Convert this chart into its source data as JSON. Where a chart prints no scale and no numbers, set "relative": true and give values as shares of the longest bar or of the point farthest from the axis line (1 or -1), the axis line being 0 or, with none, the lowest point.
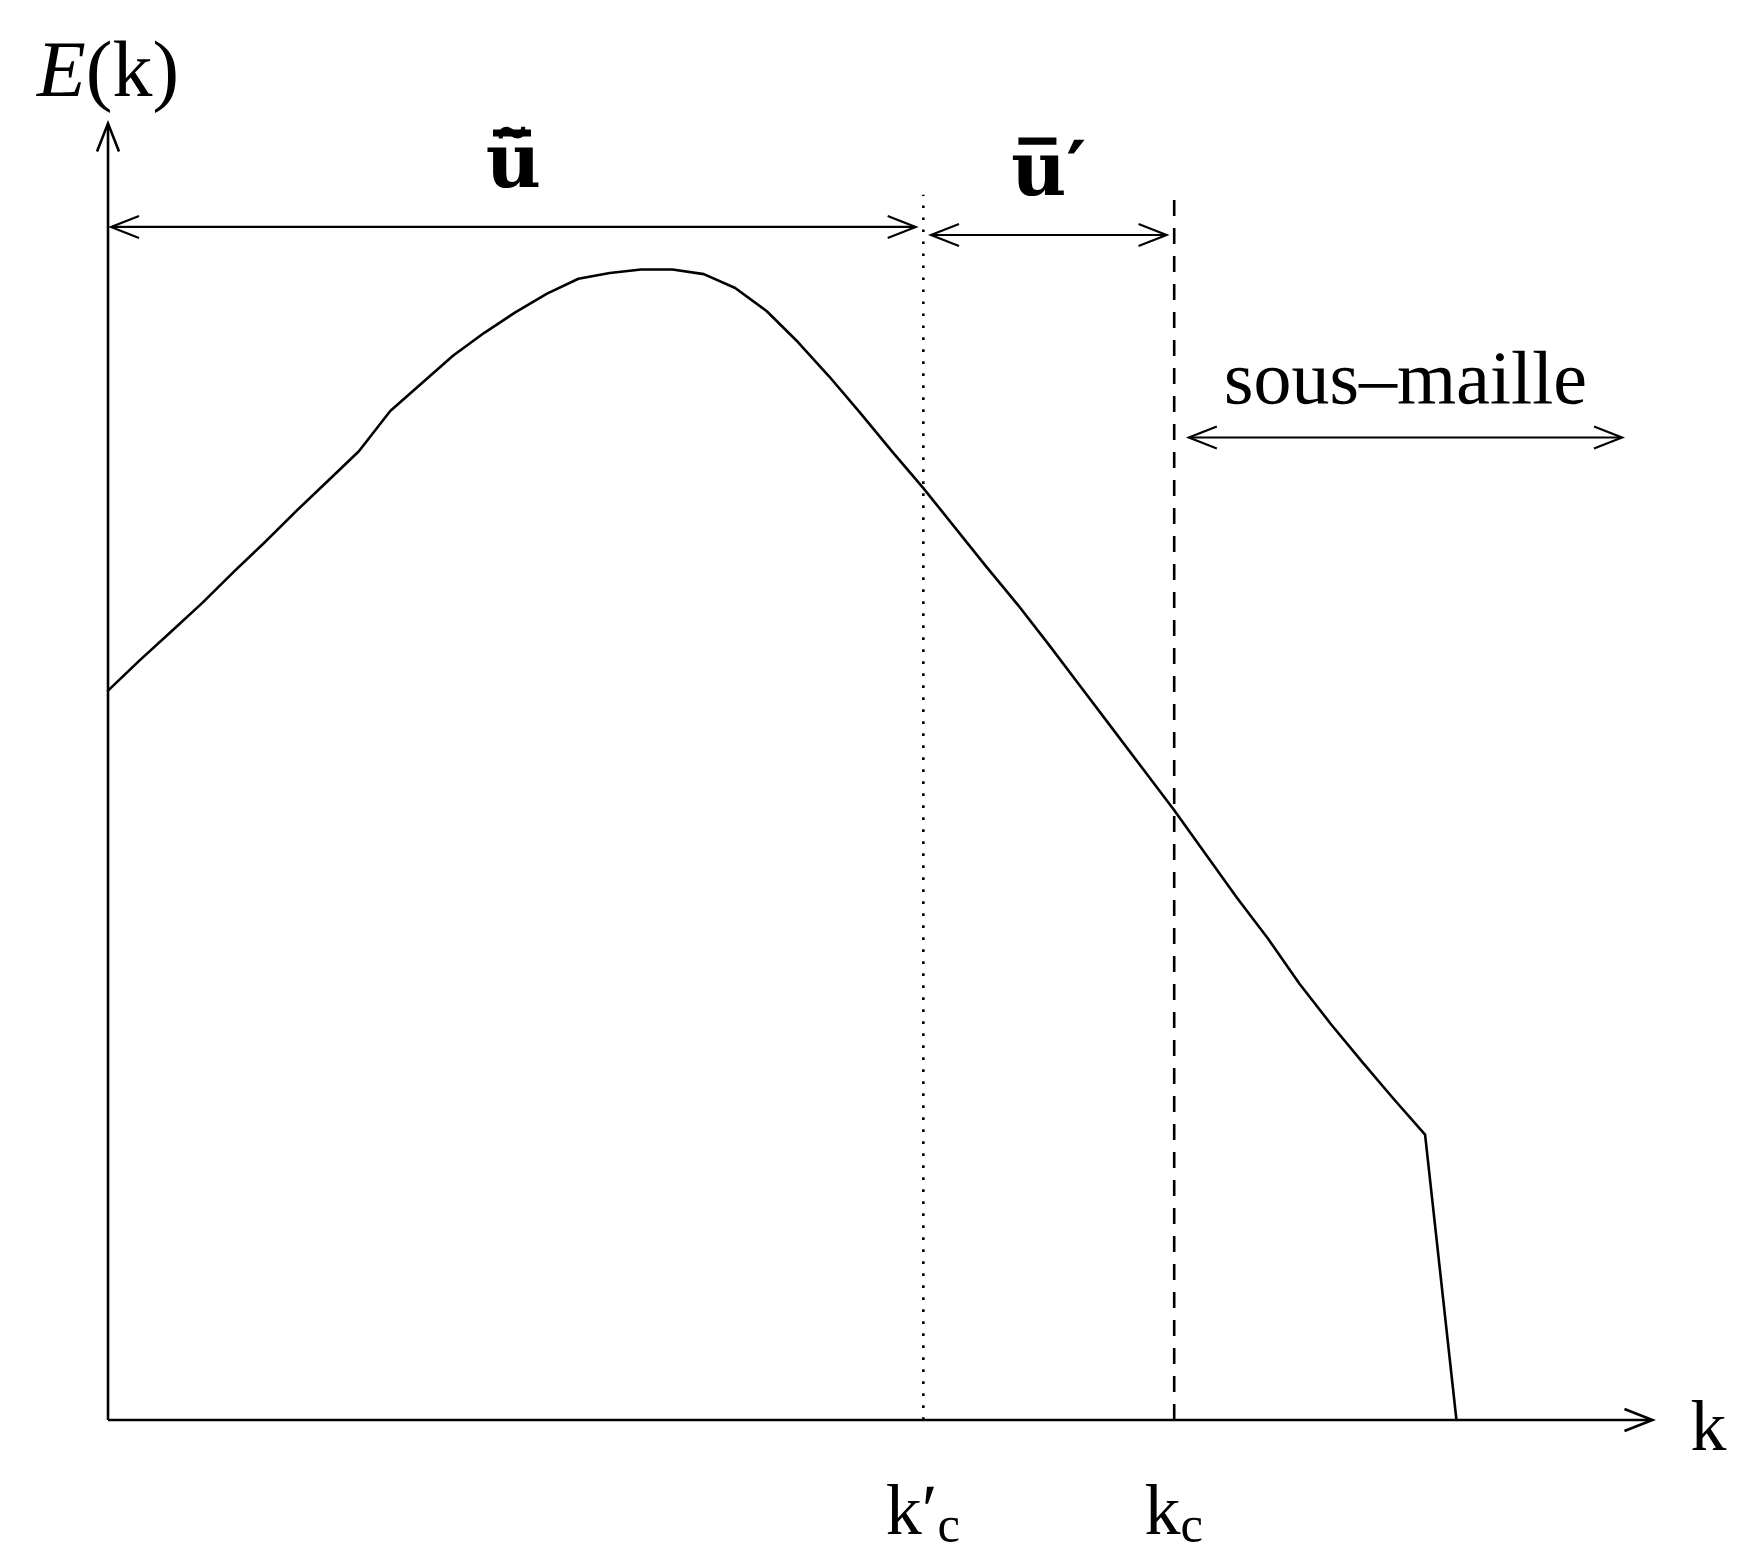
{
  "chart_data": {
    "type": "line",
    "relative": true,
    "xlabel": "k",
    "ylabel": "*E*(k)",
    "categories": [
      null,
      null,
      null,
      null,
      null,
      null,
      null,
      null,
      null,
      null,
      null,
      null,
      null,
      null,
      null,
      null,
      null,
      null,
      null,
      null,
      null,
      null,
      null,
      null,
      null,
      null,
      "k′$_{c}$",
      null,
      null,
      null,
      null,
      null,
      null,
      null,
      "k$_{c}$",
      null,
      null,
      null,
      null,
      null,
      null,
      null,
      null,
      null
    ],
    "series": [
      {
        "color": "#000000",
        "values": [
          0.634,
          0.66,
          0.685,
          0.71,
          0.737,
          0.763,
          0.79,
          0.816,
          0.842,
          0.877,
          0.901,
          0.925,
          0.945,
          0.963,
          0.979,
          0.992,
          0.997,
          1,
          1,
          0.996,
          0.984,
          0.964,
          0.937,
          0.907,
          0.875,
          0.842,
          0.81,
          0.776,
          0.742,
          0.709,
          0.674,
          0.638,
          0.602,
          0.566,
          0.53,
          0.492,
          0.454,
          0.418,
          0.379,
          0.344,
          0.311,
          0.279,
          0.248,
          0
        ]
      }
    ],
    "ref_lines": [
      {
        "axis": "x",
        "value": "k′$_{c}$",
        "line_style": "dotted"
      },
      {
        "axis": "x",
        "value": "k$_{c}$",
        "line_style": "dashed"
      }
    ],
    "annotations": [
      "u̅̃",
      "u̅′",
      "sous–maille"
    ]
  }
}
